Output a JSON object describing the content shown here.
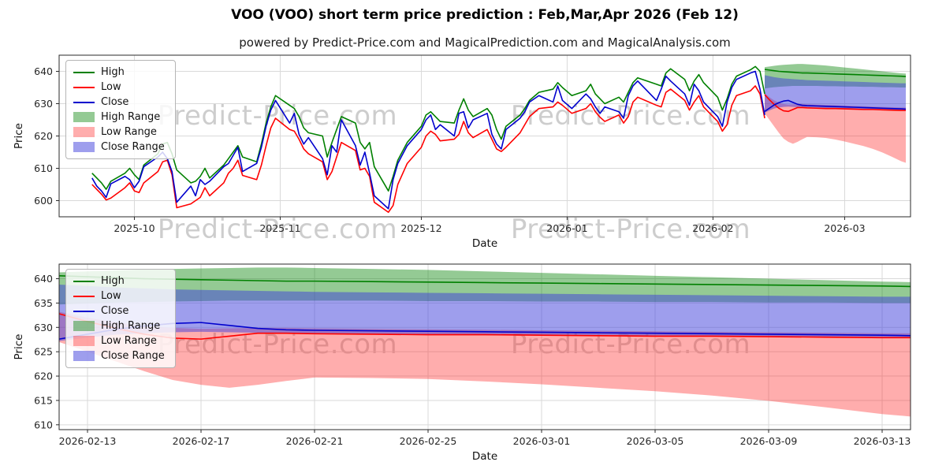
{
  "header": {
    "title": "VOO (VOO) short term price prediction : Feb,Mar,Apr 2026 (Feb 12)",
    "subtitle": "powered by Predict-Price.com and MagicalPrediction.com and MagicalAnalysis.com"
  },
  "watermark": {
    "text": "Predict-Price.com"
  },
  "colors": {
    "high": "#008000",
    "low": "#ff0000",
    "close": "#0000cd",
    "high_range": "rgba(0,128,0,0.42)",
    "low_range": "rgba(255,40,40,0.38)",
    "close_range": "rgba(62,62,220,0.5)",
    "grid": "#d9d9d9",
    "spine": "#2a2a2a"
  },
  "legend": {
    "items": [
      {
        "label": "High",
        "type": "line",
        "color": "#008000"
      },
      {
        "label": "Low",
        "type": "line",
        "color": "#ff0000"
      },
      {
        "label": "Close",
        "type": "line",
        "color": "#0000cd"
      },
      {
        "label": "High Range",
        "type": "patch",
        "color": "rgba(0,128,0,0.42)"
      },
      {
        "label": "Low Range",
        "type": "patch",
        "color": "rgba(255,40,40,0.38)"
      },
      {
        "label": "Close Range",
        "type": "patch",
        "color": "rgba(62,62,220,0.5)"
      }
    ]
  },
  "chart_data": {
    "type": "line",
    "title": "VOO (VOO) short term price prediction : Feb,Mar,Apr 2026 (Feb 12)",
    "subtitle": "powered by Predict-Price.com and MagicalPrediction.com and MagicalAnalysis.com",
    "charts": [
      {
        "name": "history-and-forecast",
        "xlabel": "Date",
        "ylabel": "Price",
        "x_domain": [
          "2025-09-15",
          "2026-03-15"
        ],
        "y_domain": [
          595,
          645
        ],
        "y_ticks": [
          600,
          610,
          620,
          630,
          640
        ],
        "x_ticks": [
          {
            "date": "2025-10-01",
            "label": "2025-10"
          },
          {
            "date": "2025-11-01",
            "label": "2025-11"
          },
          {
            "date": "2025-12-01",
            "label": "2025-12"
          },
          {
            "date": "2026-01-01",
            "label": "2026-01"
          },
          {
            "date": "2026-02-01",
            "label": "2026-02"
          },
          {
            "date": "2026-03-01",
            "label": "2026-03"
          }
        ],
        "show_history": true
      },
      {
        "name": "forecast-detail",
        "xlabel": "Date",
        "ylabel": "Price",
        "x_domain": [
          "2026-02-12",
          "2026-03-14"
        ],
        "y_domain": [
          609,
          643
        ],
        "y_ticks": [
          610,
          615,
          620,
          625,
          630,
          635,
          640
        ],
        "x_ticks": [
          {
            "date": "2026-02-13",
            "label": "2026-02-13"
          },
          {
            "date": "2026-02-17",
            "label": "2026-02-17"
          },
          {
            "date": "2026-02-21",
            "label": "2026-02-21"
          },
          {
            "date": "2026-02-25",
            "label": "2026-02-25"
          },
          {
            "date": "2026-03-01",
            "label": "2026-03-01"
          },
          {
            "date": "2026-03-05",
            "label": "2026-03-05"
          },
          {
            "date": "2026-03-09",
            "label": "2026-03-09"
          },
          {
            "date": "2026-03-13",
            "label": "2026-03-13"
          }
        ],
        "show_history": false
      }
    ],
    "history": {
      "columns": [
        "date",
        "high",
        "low",
        "close"
      ],
      "rows": [
        [
          "2025-09-22",
          608.5,
          605.0,
          607.0
        ],
        [
          "2025-09-23",
          607.0,
          603.5,
          604.5
        ],
        [
          "2025-09-24",
          605.5,
          602.0,
          603.0
        ],
        [
          "2025-09-25",
          603.5,
          600.2,
          601.0
        ],
        [
          "2025-09-26",
          606.0,
          600.8,
          605.2
        ],
        [
          "2025-09-29",
          608.5,
          604.0,
          607.5
        ],
        [
          "2025-09-30",
          610.0,
          605.5,
          606.5
        ],
        [
          "2025-10-01",
          608.0,
          603.0,
          604.0
        ],
        [
          "2025-10-02",
          606.5,
          602.5,
          606.0
        ],
        [
          "2025-10-03",
          611.0,
          605.5,
          610.5
        ],
        [
          "2025-10-06",
          614.5,
          609.0,
          613.5
        ],
        [
          "2025-10-07",
          617.5,
          612.0,
          615.0
        ],
        [
          "2025-10-08",
          618.0,
          612.5,
          613.0
        ],
        [
          "2025-10-09",
          614.5,
          608.0,
          609.0
        ],
        [
          "2025-10-10",
          609.5,
          597.8,
          599.5
        ],
        [
          "2025-10-13",
          605.5,
          599.0,
          604.5
        ],
        [
          "2025-10-14",
          606.0,
          600.0,
          601.5
        ],
        [
          "2025-10-15",
          607.5,
          601.0,
          606.5
        ],
        [
          "2025-10-16",
          610.0,
          604.0,
          605.0
        ],
        [
          "2025-10-17",
          607.0,
          601.5,
          606.0
        ],
        [
          "2025-10-20",
          611.0,
          605.5,
          610.5
        ],
        [
          "2025-10-21",
          613.0,
          608.5,
          611.5
        ],
        [
          "2025-10-22",
          615.0,
          610.0,
          614.0
        ],
        [
          "2025-10-23",
          617.0,
          612.5,
          616.5
        ],
        [
          "2025-10-24",
          613.5,
          607.8,
          609.0
        ],
        [
          "2025-10-27",
          612.0,
          606.5,
          611.5
        ],
        [
          "2025-10-28",
          617.5,
          611.0,
          616.5
        ],
        [
          "2025-10-29",
          624.0,
          617.0,
          623.0
        ],
        [
          "2025-10-30",
          629.0,
          622.5,
          628.0
        ],
        [
          "2025-10-31",
          632.5,
          625.5,
          631.0
        ],
        [
          "2025-11-03",
          629.5,
          622.0,
          624.0
        ],
        [
          "2025-11-04",
          628.5,
          621.5,
          627.0
        ],
        [
          "2025-11-05",
          626.0,
          619.0,
          620.5
        ],
        [
          "2025-11-06",
          622.5,
          616.0,
          617.5
        ],
        [
          "2025-11-07",
          621.0,
          614.5,
          619.5
        ],
        [
          "2025-11-10",
          620.0,
          612.0,
          613.0
        ],
        [
          "2025-11-11",
          613.5,
          606.5,
          608.0
        ],
        [
          "2025-11-12",
          618.0,
          609.0,
          617.0
        ],
        [
          "2025-11-13",
          622.0,
          613.5,
          615.0
        ],
        [
          "2025-11-14",
          626.0,
          618.0,
          625.0
        ],
        [
          "2025-11-17",
          624.0,
          615.5,
          617.0
        ],
        [
          "2025-11-18",
          618.0,
          609.5,
          611.0
        ],
        [
          "2025-11-19",
          616.0,
          610.0,
          615.0
        ],
        [
          "2025-11-20",
          618.0,
          607.5,
          608.5
        ],
        [
          "2025-11-21",
          610.5,
          599.5,
          601.5
        ],
        [
          "2025-11-24",
          603.0,
          596.4,
          597.5
        ],
        [
          "2025-11-25",
          607.5,
          598.5,
          606.5
        ],
        [
          "2025-11-26",
          612.5,
          605.0,
          611.5
        ],
        [
          "2025-11-28",
          618.0,
          611.5,
          617.0
        ],
        [
          "2025-12-01",
          623.0,
          616.5,
          622.0
        ],
        [
          "2025-12-02",
          626.5,
          620.0,
          625.0
        ],
        [
          "2025-12-03",
          627.5,
          621.5,
          626.5
        ],
        [
          "2025-12-04",
          626.0,
          620.5,
          622.0
        ],
        [
          "2025-12-05",
          624.5,
          618.5,
          623.5
        ],
        [
          "2025-12-08",
          624.0,
          619.0,
          620.0
        ],
        [
          "2025-12-09",
          628.0,
          620.5,
          627.0
        ],
        [
          "2025-12-10",
          631.5,
          624.5,
          627.5
        ],
        [
          "2025-12-11",
          628.0,
          621.0,
          622.5
        ],
        [
          "2025-12-12",
          626.0,
          619.5,
          625.0
        ],
        [
          "2025-12-15",
          628.5,
          622.0,
          627.0
        ],
        [
          "2025-12-16",
          626.5,
          619.0,
          620.5
        ],
        [
          "2025-12-17",
          622.0,
          616.0,
          617.5
        ],
        [
          "2025-12-18",
          619.0,
          615.2,
          616.0
        ],
        [
          "2025-12-19",
          623.0,
          616.5,
          622.0
        ],
        [
          "2025-12-22",
          626.5,
          621.0,
          625.5
        ],
        [
          "2025-12-23",
          628.5,
          623.5,
          627.5
        ],
        [
          "2025-12-24",
          631.0,
          626.0,
          630.5
        ],
        [
          "2025-12-26",
          633.5,
          628.5,
          632.5
        ],
        [
          "2025-12-29",
          634.5,
          629.0,
          630.5
        ],
        [
          "2025-12-30",
          636.5,
          630.5,
          635.5
        ],
        [
          "2025-12-31",
          635.0,
          629.5,
          631.0
        ],
        [
          "2026-01-02",
          632.5,
          627.0,
          628.5
        ],
        [
          "2026-01-05",
          634.0,
          628.5,
          633.0
        ],
        [
          "2026-01-06",
          636.0,
          630.0,
          631.5
        ],
        [
          "2026-01-07",
          633.0,
          627.5,
          629.0
        ],
        [
          "2026-01-08",
          631.5,
          625.8,
          627.0
        ],
        [
          "2026-01-09",
          630.0,
          624.5,
          629.0
        ],
        [
          "2026-01-12",
          632.0,
          626.5,
          627.5
        ],
        [
          "2026-01-13",
          630.5,
          624.0,
          625.5
        ],
        [
          "2026-01-14",
          633.5,
          626.0,
          632.5
        ],
        [
          "2026-01-15",
          636.5,
          630.5,
          635.5
        ],
        [
          "2026-01-16",
          638.0,
          632.0,
          637.0
        ],
        [
          "2026-01-20",
          636.0,
          629.5,
          631.0
        ],
        [
          "2026-01-21",
          635.5,
          629.0,
          634.5
        ],
        [
          "2026-01-22",
          639.5,
          633.5,
          638.5
        ],
        [
          "2026-01-23",
          640.8,
          634.5,
          637.0
        ],
        [
          "2026-01-26",
          637.5,
          631.0,
          633.0
        ],
        [
          "2026-01-27",
          634.0,
          628.0,
          629.5
        ],
        [
          "2026-01-28",
          637.0,
          630.5,
          636.0
        ],
        [
          "2026-01-29",
          639.0,
          632.5,
          634.0
        ],
        [
          "2026-01-30",
          636.5,
          629.0,
          630.5
        ],
        [
          "2026-02-02",
          632.0,
          624.5,
          626.0
        ],
        [
          "2026-02-03",
          628.0,
          621.5,
          623.0
        ],
        [
          "2026-02-04",
          631.5,
          623.5,
          630.5
        ],
        [
          "2026-02-05",
          636.0,
          629.5,
          635.0
        ],
        [
          "2026-02-06",
          638.5,
          632.5,
          637.5
        ],
        [
          "2026-02-09",
          640.5,
          634.0,
          639.5
        ],
        [
          "2026-02-10",
          641.5,
          635.5,
          640.0
        ],
        [
          "2026-02-11",
          640.0,
          633.0,
          634.5
        ],
        [
          "2026-02-12",
          633.0,
          625.5,
          626.5
        ]
      ]
    },
    "prediction": {
      "columns": [
        "date",
        "high",
        "low",
        "close",
        "high_max",
        "high_min",
        "close_max",
        "close_min",
        "low_max",
        "low_min"
      ],
      "rows": [
        [
          "2026-02-12",
          640.6,
          632.8,
          627.6,
          641.3,
          634.7,
          638.8,
          627.2,
          633.2,
          627.0
        ],
        [
          "2026-02-13",
          640.4,
          631.2,
          628.6,
          641.5,
          634.9,
          638.5,
          627.9,
          632.0,
          625.0
        ],
        [
          "2026-02-14",
          640.2,
          629.8,
          629.6,
          641.7,
          635.1,
          638.2,
          628.5,
          631.0,
          623.0
        ],
        [
          "2026-02-15",
          640.0,
          628.6,
          630.3,
          641.9,
          635.2,
          638.0,
          628.8,
          630.3,
          621.0
        ],
        [
          "2026-02-16",
          639.9,
          627.8,
          630.8,
          642.0,
          635.3,
          637.8,
          629.0,
          629.9,
          619.2
        ],
        [
          "2026-02-17",
          639.8,
          627.6,
          631.0,
          642.1,
          635.4,
          637.7,
          629.1,
          629.7,
          618.2
        ],
        [
          "2026-02-18",
          639.7,
          628.2,
          630.4,
          642.2,
          635.5,
          637.6,
          629.0,
          629.8,
          617.6
        ],
        [
          "2026-02-19",
          639.6,
          628.8,
          629.8,
          642.3,
          635.5,
          637.5,
          628.9,
          629.9,
          618.2
        ],
        [
          "2026-02-20",
          639.5,
          628.8,
          629.5,
          642.3,
          635.5,
          637.4,
          628.8,
          629.9,
          619.0
        ],
        [
          "2026-02-21",
          639.5,
          628.7,
          629.4,
          642.2,
          635.5,
          637.3,
          628.8,
          629.8,
          619.7
        ],
        [
          "2026-02-23",
          639.4,
          628.6,
          629.3,
          642.0,
          635.5,
          637.2,
          628.7,
          629.7,
          619.6
        ],
        [
          "2026-02-25",
          639.3,
          628.5,
          629.2,
          641.8,
          635.4,
          637.1,
          628.6,
          629.6,
          619.4
        ],
        [
          "2026-02-27",
          639.2,
          628.5,
          629.1,
          641.5,
          635.4,
          637.0,
          628.5,
          629.5,
          618.9
        ],
        [
          "2026-03-01",
          639.1,
          628.4,
          629.0,
          641.2,
          635.3,
          636.9,
          628.5,
          629.4,
          618.3
        ],
        [
          "2026-03-03",
          639.0,
          628.3,
          628.9,
          640.9,
          635.3,
          636.8,
          628.4,
          629.3,
          617.6
        ],
        [
          "2026-03-05",
          638.9,
          628.2,
          628.8,
          640.6,
          635.2,
          636.7,
          628.3,
          629.2,
          616.9
        ],
        [
          "2026-03-07",
          638.8,
          628.2,
          628.7,
          640.3,
          635.2,
          636.6,
          628.2,
          629.1,
          616.0
        ],
        [
          "2026-03-09",
          638.7,
          628.1,
          628.6,
          640.0,
          635.1,
          636.5,
          628.2,
          629.0,
          614.9
        ],
        [
          "2026-03-11",
          638.6,
          628.0,
          628.5,
          639.7,
          635.1,
          636.4,
          628.1,
          628.9,
          613.6
        ],
        [
          "2026-03-13",
          638.5,
          627.9,
          628.4,
          639.4,
          635.0,
          636.3,
          628.0,
          628.8,
          612.2
        ],
        [
          "2026-03-14",
          638.4,
          627.9,
          628.3,
          639.3,
          635.0,
          636.3,
          628.0,
          628.8,
          611.7
        ]
      ]
    }
  }
}
